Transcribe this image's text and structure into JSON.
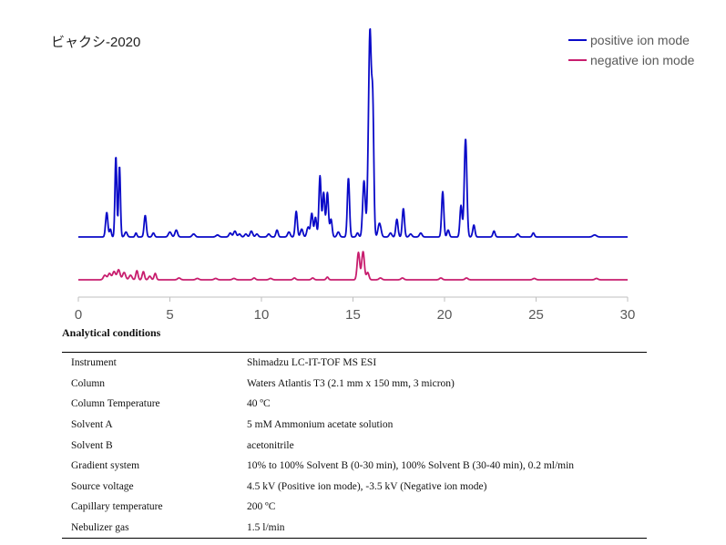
{
  "chart_data": {
    "type": "line",
    "title": "ビャクシ-2020",
    "xlabel": "",
    "ylabel": "",
    "xlim": [
      0,
      30
    ],
    "x_ticks": [
      0,
      5,
      10,
      15,
      20,
      25,
      30
    ],
    "legend_position": "top-right",
    "grid": false,
    "series": [
      {
        "name": "positive ion mode",
        "color": "#0a0ac8",
        "baseline": 0,
        "peaks": [
          [
            1.55,
            25,
            0.06
          ],
          [
            1.75,
            8,
            0.05
          ],
          [
            2.05,
            82,
            0.05
          ],
          [
            2.25,
            72,
            0.05
          ],
          [
            2.6,
            5,
            0.07
          ],
          [
            3.15,
            4,
            0.05
          ],
          [
            3.65,
            22,
            0.06
          ],
          [
            4.1,
            4,
            0.06
          ],
          [
            5.0,
            5,
            0.08
          ],
          [
            5.35,
            7,
            0.07
          ],
          [
            6.3,
            3,
            0.08
          ],
          [
            7.6,
            2,
            0.08
          ],
          [
            8.3,
            4,
            0.07
          ],
          [
            8.55,
            6,
            0.07
          ],
          [
            8.8,
            3,
            0.07
          ],
          [
            9.15,
            3,
            0.07
          ],
          [
            9.45,
            6,
            0.07
          ],
          [
            9.75,
            3,
            0.07
          ],
          [
            10.4,
            3,
            0.07
          ],
          [
            10.85,
            7,
            0.06
          ],
          [
            11.5,
            5,
            0.07
          ],
          [
            11.9,
            26,
            0.06
          ],
          [
            12.2,
            8,
            0.07
          ],
          [
            12.55,
            10,
            0.07
          ],
          [
            12.75,
            24,
            0.06
          ],
          [
            12.95,
            20,
            0.06
          ],
          [
            13.2,
            62,
            0.06
          ],
          [
            13.4,
            45,
            0.06
          ],
          [
            13.6,
            45,
            0.06
          ],
          [
            13.8,
            18,
            0.06
          ],
          [
            14.2,
            5,
            0.07
          ],
          [
            14.75,
            60,
            0.06
          ],
          [
            15.25,
            4,
            0.06
          ],
          [
            15.6,
            57,
            0.07
          ],
          [
            15.82,
            35,
            0.06
          ],
          [
            15.93,
            200,
            0.07
          ],
          [
            16.08,
            130,
            0.06
          ],
          [
            16.45,
            14,
            0.08
          ],
          [
            17.05,
            4,
            0.07
          ],
          [
            17.4,
            18,
            0.06
          ],
          [
            17.75,
            29,
            0.06
          ],
          [
            18.15,
            3,
            0.07
          ],
          [
            18.7,
            4,
            0.07
          ],
          [
            19.9,
            46,
            0.06
          ],
          [
            20.2,
            7,
            0.06
          ],
          [
            20.9,
            32,
            0.06
          ],
          [
            21.15,
            100,
            0.07
          ],
          [
            21.6,
            12,
            0.06
          ],
          [
            22.7,
            6,
            0.06
          ],
          [
            24.0,
            3,
            0.07
          ],
          [
            24.85,
            4,
            0.06
          ],
          [
            28.2,
            2,
            0.1
          ]
        ]
      },
      {
        "name": "negative ion mode",
        "color": "#c81e6e",
        "baseline": 0,
        "peaks": [
          [
            1.45,
            5,
            0.08
          ],
          [
            1.7,
            7,
            0.08
          ],
          [
            1.95,
            9,
            0.08
          ],
          [
            2.2,
            11,
            0.08
          ],
          [
            2.5,
            8,
            0.08
          ],
          [
            2.85,
            5,
            0.08
          ],
          [
            3.2,
            10,
            0.06
          ],
          [
            3.55,
            9,
            0.06
          ],
          [
            3.9,
            4,
            0.07
          ],
          [
            4.2,
            7,
            0.06
          ],
          [
            5.5,
            2,
            0.08
          ],
          [
            6.5,
            1.5,
            0.08
          ],
          [
            7.5,
            1.5,
            0.08
          ],
          [
            8.5,
            1.5,
            0.08
          ],
          [
            9.6,
            2,
            0.07
          ],
          [
            10.5,
            1.5,
            0.08
          ],
          [
            11.8,
            2,
            0.07
          ],
          [
            12.8,
            2,
            0.07
          ],
          [
            13.6,
            3,
            0.06
          ],
          [
            15.3,
            30,
            0.07
          ],
          [
            15.55,
            31,
            0.07
          ],
          [
            15.8,
            8,
            0.07
          ],
          [
            16.5,
            2,
            0.08
          ],
          [
            17.7,
            2,
            0.08
          ],
          [
            19.8,
            2,
            0.08
          ],
          [
            21.2,
            2,
            0.08
          ],
          [
            24.9,
            1.5,
            0.08
          ],
          [
            28.3,
            1.5,
            0.08
          ]
        ]
      }
    ]
  },
  "conditions": {
    "heading": "Analytical conditions",
    "rows": [
      {
        "key": "Instrument",
        "value": "Shimadzu  LC-IT-TOF MS ESI"
      },
      {
        "key": "Column",
        "value": "Waters Atlantis T3 (2.1 mm x 150 mm, 3 micron)"
      },
      {
        "key": "Column Temperature",
        "value": "40 ºC"
      },
      {
        "key": "Solvent A",
        "value": "5 mM  Ammonium  acetate solution"
      },
      {
        "key": "Solvent B",
        "value": "acetonitrile"
      },
      {
        "key": "Gradient system",
        "value": "10% to 100% Solvent  B (0-30 min), 100% Solvent B (30-40 min), 0.2 ml/min"
      },
      {
        "key": "Source voltage",
        "value": "4.5 kV (Positive ion mode), -3.5 kV (Negative ion mode)"
      },
      {
        "key": "Capillary temperature",
        "value": "200  ºC"
      },
      {
        "key": "Nebulizer gas",
        "value": "1.5 l/min"
      }
    ]
  }
}
